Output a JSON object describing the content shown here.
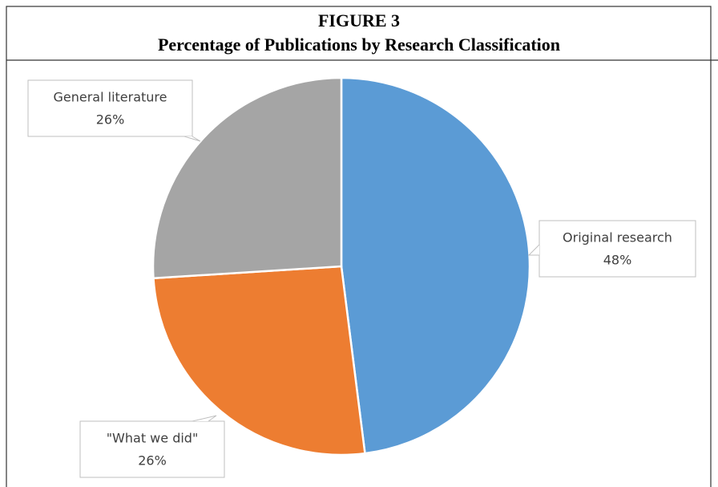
{
  "chart_data": {
    "type": "pie",
    "title": "FIGURE 3",
    "subtitle": "Percentage of Publications by Research Classification",
    "categories": [
      "Original research",
      "\"What we did\"",
      "General literature"
    ],
    "values": [
      48,
      26,
      26
    ],
    "value_labels": [
      "48%",
      "26%",
      "26%"
    ],
    "colors": [
      "#5b9bd5",
      "#ed7d31",
      "#a5a5a5"
    ]
  }
}
